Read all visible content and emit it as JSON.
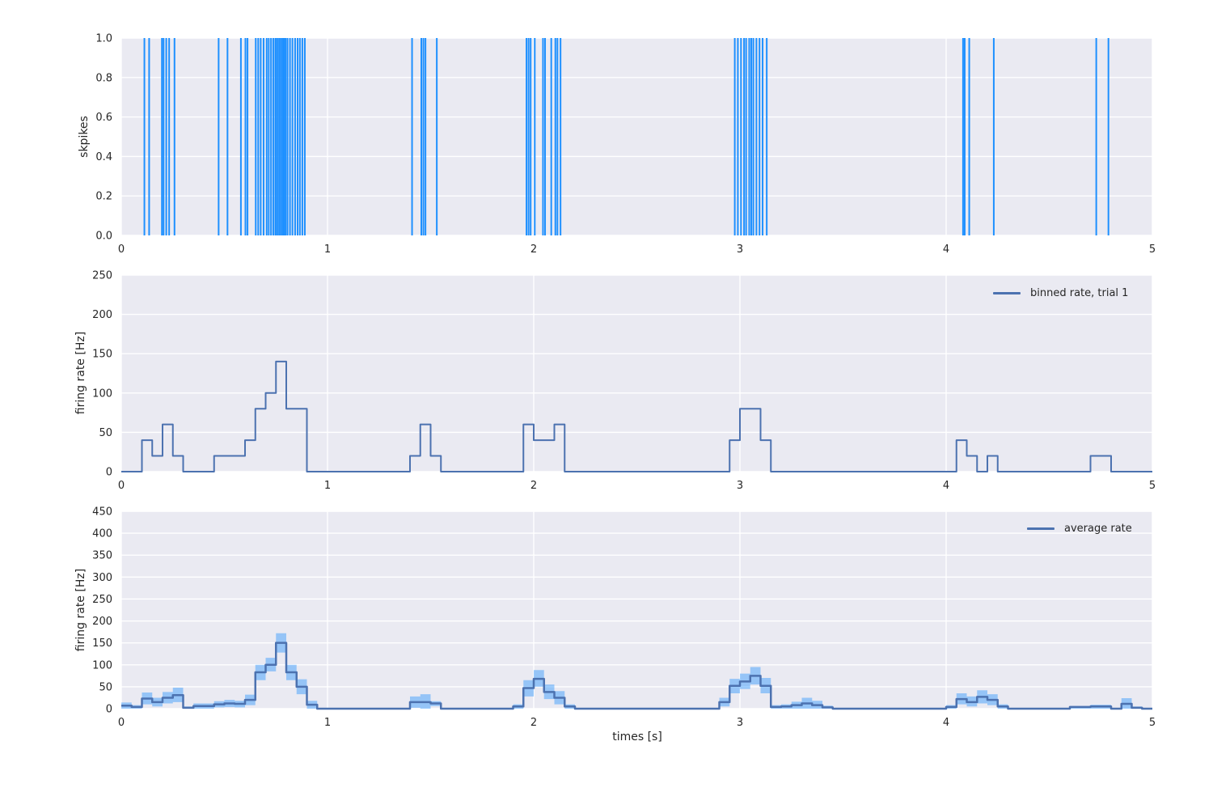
{
  "figure": {
    "background": "#ffffff",
    "axes_background": "#eaeaf2",
    "grid_color": "#ffffff",
    "text_color": "#262626",
    "spike_color": "#1e90ff",
    "line_color": "#4c72b0",
    "band_color": "rgba(30,144,255,0.42)",
    "xlabel": "times [s]"
  },
  "chart_data": [
    {
      "type": "line",
      "subtype": "eventplot-spike-raster",
      "ylabel": "skpikes",
      "xlim": [
        0,
        5
      ],
      "ylim": [
        0.0,
        1.0
      ],
      "xticks": [
        0,
        1,
        2,
        3,
        4,
        5
      ],
      "xtick_labels": [
        "0",
        "1",
        "2",
        "3",
        "4",
        "5"
      ],
      "yticks": [
        0.0,
        0.2,
        0.4,
        0.6,
        0.8,
        1.0
      ],
      "ytick_labels": [
        "0.0",
        "0.2",
        "0.4",
        "0.6",
        "0.8",
        "1.0"
      ],
      "grid": true,
      "spike_times": [
        0.112,
        0.135,
        0.197,
        0.205,
        0.218,
        0.232,
        0.258,
        0.472,
        0.515,
        0.58,
        0.602,
        0.612,
        0.652,
        0.664,
        0.676,
        0.69,
        0.705,
        0.715,
        0.726,
        0.737,
        0.747,
        0.752,
        0.76,
        0.768,
        0.776,
        0.784,
        0.79,
        0.797,
        0.806,
        0.818,
        0.83,
        0.843,
        0.855,
        0.866,
        0.878,
        0.89,
        1.41,
        1.455,
        1.465,
        1.475,
        1.53,
        1.965,
        1.975,
        1.985,
        2.005,
        2.045,
        2.055,
        2.085,
        2.105,
        2.115,
        2.13,
        2.975,
        2.99,
        3.005,
        3.02,
        3.03,
        3.045,
        3.055,
        3.065,
        3.08,
        3.095,
        3.11,
        3.13,
        4.082,
        4.09,
        4.112,
        4.231,
        4.728,
        4.787
      ]
    },
    {
      "type": "line",
      "subtype": "step-histogram",
      "legend": "binned rate, trial 1",
      "ylabel": "firing rate [Hz]",
      "xlim": [
        0,
        5
      ],
      "ylim": [
        0,
        250
      ],
      "xticks": [
        0,
        1,
        2,
        3,
        4,
        5
      ],
      "xtick_labels": [
        "0",
        "1",
        "2",
        "3",
        "4",
        "5"
      ],
      "yticks": [
        0,
        50,
        100,
        150,
        200,
        250
      ],
      "ytick_labels": [
        "0",
        "50",
        "100",
        "150",
        "200",
        "250"
      ],
      "grid": true,
      "bin_width": 0.05,
      "note": "rate is 0 Hz outside listed segments; segments are [t_start, t_end, rate_Hz]",
      "segments": [
        [
          0.1,
          0.15,
          40
        ],
        [
          0.15,
          0.2,
          20
        ],
        [
          0.2,
          0.25,
          60
        ],
        [
          0.25,
          0.3,
          20
        ],
        [
          0.45,
          0.6,
          20
        ],
        [
          0.6,
          0.65,
          40
        ],
        [
          0.65,
          0.7,
          80
        ],
        [
          0.7,
          0.75,
          100
        ],
        [
          0.75,
          0.8,
          140
        ],
        [
          0.8,
          0.9,
          80
        ],
        [
          1.4,
          1.45,
          20
        ],
        [
          1.45,
          1.5,
          60
        ],
        [
          1.5,
          1.55,
          20
        ],
        [
          1.95,
          2.0,
          60
        ],
        [
          2.0,
          2.1,
          40
        ],
        [
          2.1,
          2.15,
          60
        ],
        [
          2.95,
          3.0,
          40
        ],
        [
          3.0,
          3.1,
          80
        ],
        [
          3.1,
          3.15,
          40
        ],
        [
          4.05,
          4.1,
          40
        ],
        [
          4.1,
          4.15,
          20
        ],
        [
          4.2,
          4.25,
          20
        ],
        [
          4.7,
          4.8,
          20
        ]
      ]
    },
    {
      "type": "line",
      "subtype": "step-with-band",
      "legend": "average rate",
      "ylabel": "firing rate [Hz]",
      "xlabel": "times [s]",
      "xlim": [
        0,
        5
      ],
      "ylim": [
        0,
        450
      ],
      "xticks": [
        0,
        1,
        2,
        3,
        4,
        5
      ],
      "xtick_labels": [
        "0",
        "1",
        "2",
        "3",
        "4",
        "5"
      ],
      "yticks": [
        0,
        50,
        100,
        150,
        200,
        250,
        300,
        350,
        400,
        450
      ],
      "ytick_labels": [
        "0",
        "50",
        "100",
        "150",
        "200",
        "250",
        "300",
        "350",
        "400",
        "450"
      ],
      "grid": true,
      "bin_width": 0.05,
      "note": "mean is 0 Hz outside listed segments; segments are [t_start, t_end, mean_Hz, band_low_Hz, band_high_Hz]",
      "segments": [
        [
          0.0,
          0.05,
          7,
          0,
          14
        ],
        [
          0.05,
          0.1,
          4,
          0,
          8
        ],
        [
          0.1,
          0.15,
          23,
          10,
          37
        ],
        [
          0.15,
          0.2,
          15,
          5,
          25
        ],
        [
          0.2,
          0.25,
          25,
          12,
          38
        ],
        [
          0.25,
          0.3,
          31,
          15,
          48
        ],
        [
          0.3,
          0.35,
          2,
          0,
          5
        ],
        [
          0.35,
          0.4,
          6,
          0,
          12
        ],
        [
          0.4,
          0.45,
          6,
          0,
          12
        ],
        [
          0.45,
          0.5,
          10,
          3,
          17
        ],
        [
          0.5,
          0.55,
          12,
          4,
          20
        ],
        [
          0.55,
          0.6,
          11,
          3,
          18
        ],
        [
          0.6,
          0.65,
          20,
          8,
          32
        ],
        [
          0.65,
          0.7,
          83,
          65,
          100
        ],
        [
          0.7,
          0.75,
          100,
          85,
          116
        ],
        [
          0.75,
          0.8,
          150,
          128,
          172
        ],
        [
          0.8,
          0.85,
          83,
          65,
          100
        ],
        [
          0.85,
          0.9,
          50,
          33,
          67
        ],
        [
          0.9,
          0.95,
          9,
          0,
          18
        ],
        [
          1.4,
          1.45,
          15,
          2,
          28
        ],
        [
          1.45,
          1.5,
          15,
          0,
          33
        ],
        [
          1.5,
          1.55,
          12,
          6,
          17
        ],
        [
          1.9,
          1.95,
          5,
          0,
          10
        ],
        [
          1.95,
          2.0,
          47,
          28,
          65
        ],
        [
          2.0,
          2.05,
          68,
          50,
          88
        ],
        [
          2.05,
          2.1,
          38,
          22,
          55
        ],
        [
          2.1,
          2.15,
          25,
          10,
          40
        ],
        [
          2.15,
          2.2,
          5,
          0,
          10
        ],
        [
          2.9,
          2.95,
          15,
          5,
          25
        ],
        [
          2.95,
          3.0,
          52,
          35,
          68
        ],
        [
          3.0,
          3.05,
          62,
          45,
          80
        ],
        [
          3.05,
          3.1,
          75,
          55,
          95
        ],
        [
          3.1,
          3.15,
          52,
          35,
          70
        ],
        [
          3.15,
          3.2,
          4,
          0,
          8
        ],
        [
          3.2,
          3.25,
          5,
          0,
          10
        ],
        [
          3.25,
          3.3,
          8,
          0,
          16
        ],
        [
          3.3,
          3.35,
          12,
          0,
          25
        ],
        [
          3.35,
          3.4,
          8,
          0,
          18
        ],
        [
          3.4,
          3.45,
          3,
          0,
          7
        ],
        [
          4.0,
          4.05,
          4,
          0,
          8
        ],
        [
          4.05,
          4.1,
          22,
          10,
          35
        ],
        [
          4.1,
          4.15,
          15,
          5,
          28
        ],
        [
          4.15,
          4.2,
          27,
          12,
          42
        ],
        [
          4.2,
          4.25,
          20,
          8,
          33
        ],
        [
          4.25,
          4.3,
          5,
          0,
          10
        ],
        [
          4.6,
          4.7,
          4,
          0,
          6
        ],
        [
          4.7,
          4.8,
          5,
          0,
          9
        ],
        [
          4.85,
          4.9,
          11,
          0,
          24
        ],
        [
          4.9,
          4.95,
          2,
          0,
          5
        ]
      ]
    }
  ]
}
